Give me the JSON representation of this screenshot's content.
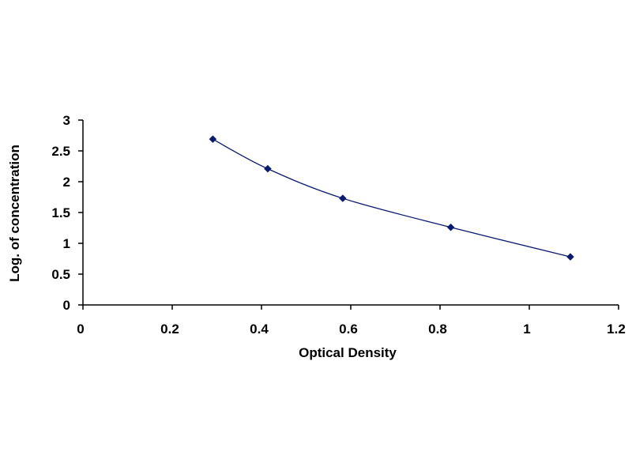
{
  "chart_data": {
    "type": "scatter",
    "title": "",
    "xlabel": "Optical Density",
    "ylabel": "Log. of concentration",
    "xlim": [
      0,
      1.2
    ],
    "ylim": [
      0,
      3
    ],
    "x_ticks": [
      0,
      0.2,
      0.4,
      0.6,
      0.8,
      1,
      1.2
    ],
    "x_tick_labels": [
      "0",
      "0.2",
      "0.4",
      "0.6",
      "0.8",
      "1",
      "1.2"
    ],
    "y_ticks": [
      0,
      0.5,
      1,
      1.5,
      2,
      2.5,
      3
    ],
    "y_tick_labels": [
      "0",
      "0.5",
      "1",
      "1.5",
      "2",
      "2.5",
      "3"
    ],
    "grid": false,
    "legend": "none",
    "smooth_line": true,
    "series": [
      {
        "x": [
          0.291,
          0.414,
          0.582,
          0.824,
          1.092
        ],
        "y": [
          2.69,
          2.21,
          1.73,
          1.26,
          0.78
        ],
        "color": "#0a1a6e",
        "marker": "diamond"
      }
    ]
  }
}
